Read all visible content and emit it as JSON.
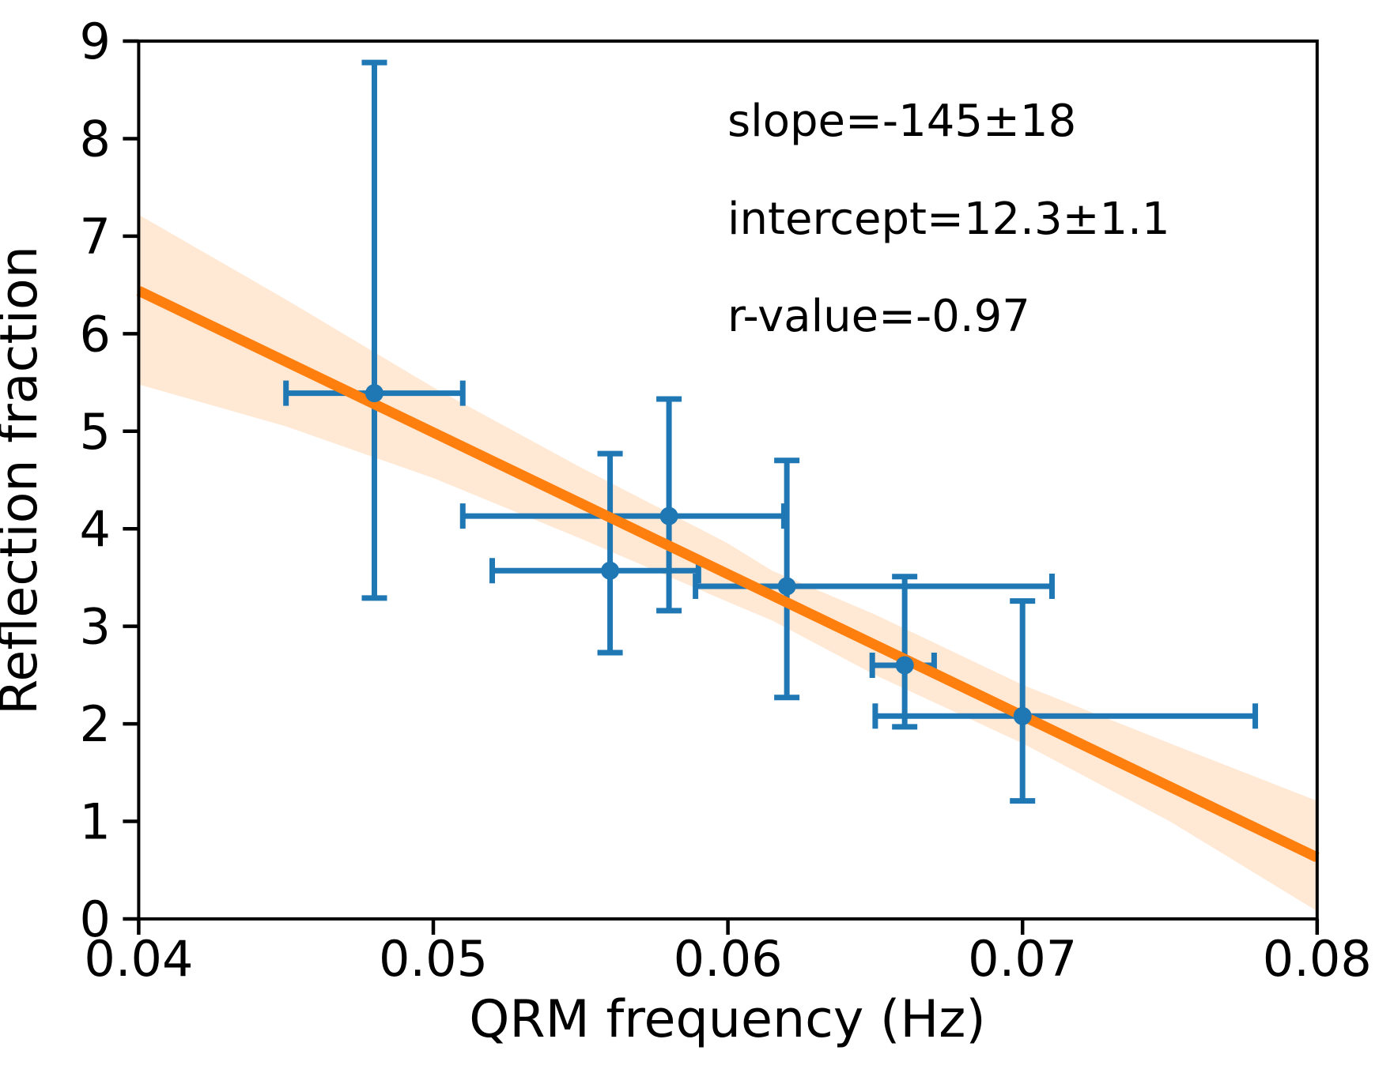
{
  "chart_data": {
    "type": "scatter",
    "title": "",
    "xlabel": "QRM frequency (Hz)",
    "ylabel": "Reflection fraction",
    "xlim": [
      0.04,
      0.08
    ],
    "ylim": [
      0,
      9
    ],
    "grid": false,
    "legend": "none",
    "xticks": {
      "values": [
        0.04,
        0.05,
        0.06,
        0.07,
        0.08
      ],
      "labels": [
        "0.04",
        "0.05",
        "0.06",
        "0.07",
        "0.08"
      ]
    },
    "yticks": {
      "values": [
        0,
        1,
        2,
        3,
        4,
        5,
        6,
        7,
        8,
        9
      ],
      "labels": [
        "0",
        "1",
        "2",
        "3",
        "4",
        "5",
        "6",
        "7",
        "8",
        "9"
      ]
    },
    "annotations": [
      {
        "text": "slope=-145±18"
      },
      {
        "text": "intercept=12.3±1.1"
      },
      {
        "text": "r-value=-0.97"
      }
    ],
    "fit_stats": {
      "slope": -145,
      "slope_err": 18,
      "intercept": 12.3,
      "intercept_err": 1.1,
      "r_value": -0.97
    },
    "points": [
      {
        "x": 0.048,
        "y": 5.39,
        "x_lo": 0.045,
        "x_hi": 0.051,
        "y_lo": 3.29,
        "y_hi": 8.78
      },
      {
        "x": 0.056,
        "y": 3.57,
        "x_lo": 0.052,
        "x_hi": 0.059,
        "y_lo": 2.73,
        "y_hi": 4.77
      },
      {
        "x": 0.058,
        "y": 4.13,
        "x_lo": 0.051,
        "x_hi": 0.0619,
        "y_lo": 3.16,
        "y_hi": 5.33
      },
      {
        "x": 0.062,
        "y": 3.41,
        "x_lo": 0.0589,
        "x_hi": 0.071,
        "y_lo": 2.27,
        "y_hi": 4.7
      },
      {
        "x": 0.066,
        "y": 2.6,
        "x_lo": 0.0649,
        "x_hi": 0.067,
        "y_lo": 1.97,
        "y_hi": 3.51
      },
      {
        "x": 0.07,
        "y": 2.08,
        "x_lo": 0.065,
        "x_hi": 0.0779,
        "y_lo": 1.21,
        "y_hi": 3.26
      }
    ],
    "fit_line": {
      "x": [
        0.04,
        0.08
      ],
      "y": [
        6.44,
        0.63
      ]
    },
    "confidence_band": {
      "x": [
        0.04,
        0.045,
        0.05,
        0.055,
        0.06,
        0.0615,
        0.065,
        0.07,
        0.075,
        0.08
      ],
      "upper": [
        7.22,
        6.35,
        5.45,
        4.63,
        3.85,
        3.57,
        3.12,
        2.4,
        1.8,
        1.21
      ],
      "lower": [
        5.48,
        5.05,
        4.52,
        3.9,
        3.25,
        3.06,
        2.5,
        1.8,
        1.0,
        0.08
      ]
    },
    "colors": {
      "data": "#1f77b4",
      "fit": "#ff7f0e",
      "band": "#ff7f0e",
      "text": "#000000",
      "axes": "#000000"
    }
  }
}
